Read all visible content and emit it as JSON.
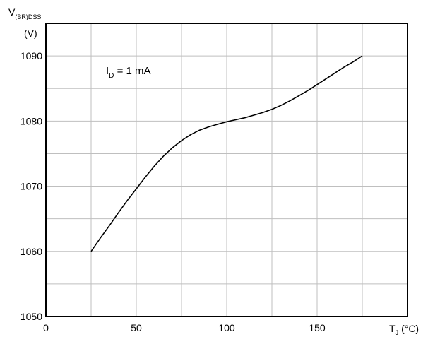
{
  "chart_data": {
    "type": "line",
    "xlabel_main": "T",
    "xlabel_sub": "J",
    "xlabel_unit": "(°C)",
    "ylabel_main": "V",
    "ylabel_sub": "(BR)DSS",
    "ylabel_unit": "(V)",
    "annotation_main": "I",
    "annotation_sub": "D",
    "annotation_rest": " = 1 mA",
    "xlim": [
      0,
      200
    ],
    "ylim": [
      1050,
      1095
    ],
    "xticks": [
      0,
      50,
      100,
      150
    ],
    "yticks": [
      1050,
      1060,
      1070,
      1080,
      1090
    ],
    "grid": true,
    "line_color": "#000000",
    "grid_color": "#bfbfbf",
    "series": [
      {
        "x": [
          25,
          30,
          35,
          40,
          45,
          50,
          55,
          60,
          65,
          70,
          75,
          80,
          85,
          90,
          95,
          100,
          105,
          110,
          115,
          120,
          125,
          130,
          135,
          140,
          145,
          150,
          155,
          160,
          165,
          170,
          175
        ],
        "y": [
          1060,
          1062,
          1063.9,
          1065.9,
          1067.8,
          1069.6,
          1071.4,
          1073.1,
          1074.6,
          1075.9,
          1077,
          1077.9,
          1078.6,
          1079.1,
          1079.5,
          1079.9,
          1080.2,
          1080.5,
          1080.9,
          1081.3,
          1081.8,
          1082.4,
          1083.1,
          1083.9,
          1084.7,
          1085.6,
          1086.5,
          1087.4,
          1088.3,
          1089.1,
          1090
        ]
      }
    ]
  }
}
